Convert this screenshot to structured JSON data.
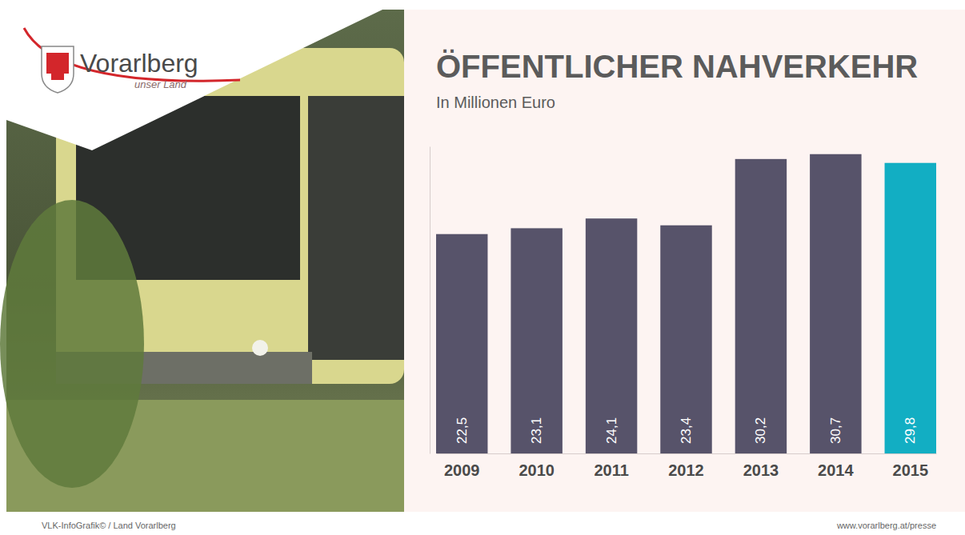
{
  "chart_data": {
    "type": "bar",
    "title": "ÖFFENTLICHER NAHVERKEHR",
    "subtitle": "In Millionen Euro",
    "categories": [
      "2009",
      "2010",
      "2011",
      "2012",
      "2013",
      "2014",
      "2015"
    ],
    "values": [
      22.5,
      23.1,
      24.1,
      23.4,
      30.2,
      30.7,
      29.8
    ],
    "value_labels": [
      "22,5",
      "23,1",
      "24,1",
      "23,4",
      "30,2",
      "30,7",
      "29,8"
    ],
    "colors": [
      "#57536a",
      "#57536a",
      "#57536a",
      "#57536a",
      "#57536a",
      "#57536a",
      "#12aec3"
    ],
    "ylim": [
      0,
      31.5
    ],
    "data_labels": true,
    "tick_labels": "x",
    "annotations": [
      "Vorarlberg",
      "unser Land",
      "VLK-InfoGrafik© / Land Vorarlberg",
      "www.vorarlberg.at/presse"
    ]
  }
}
